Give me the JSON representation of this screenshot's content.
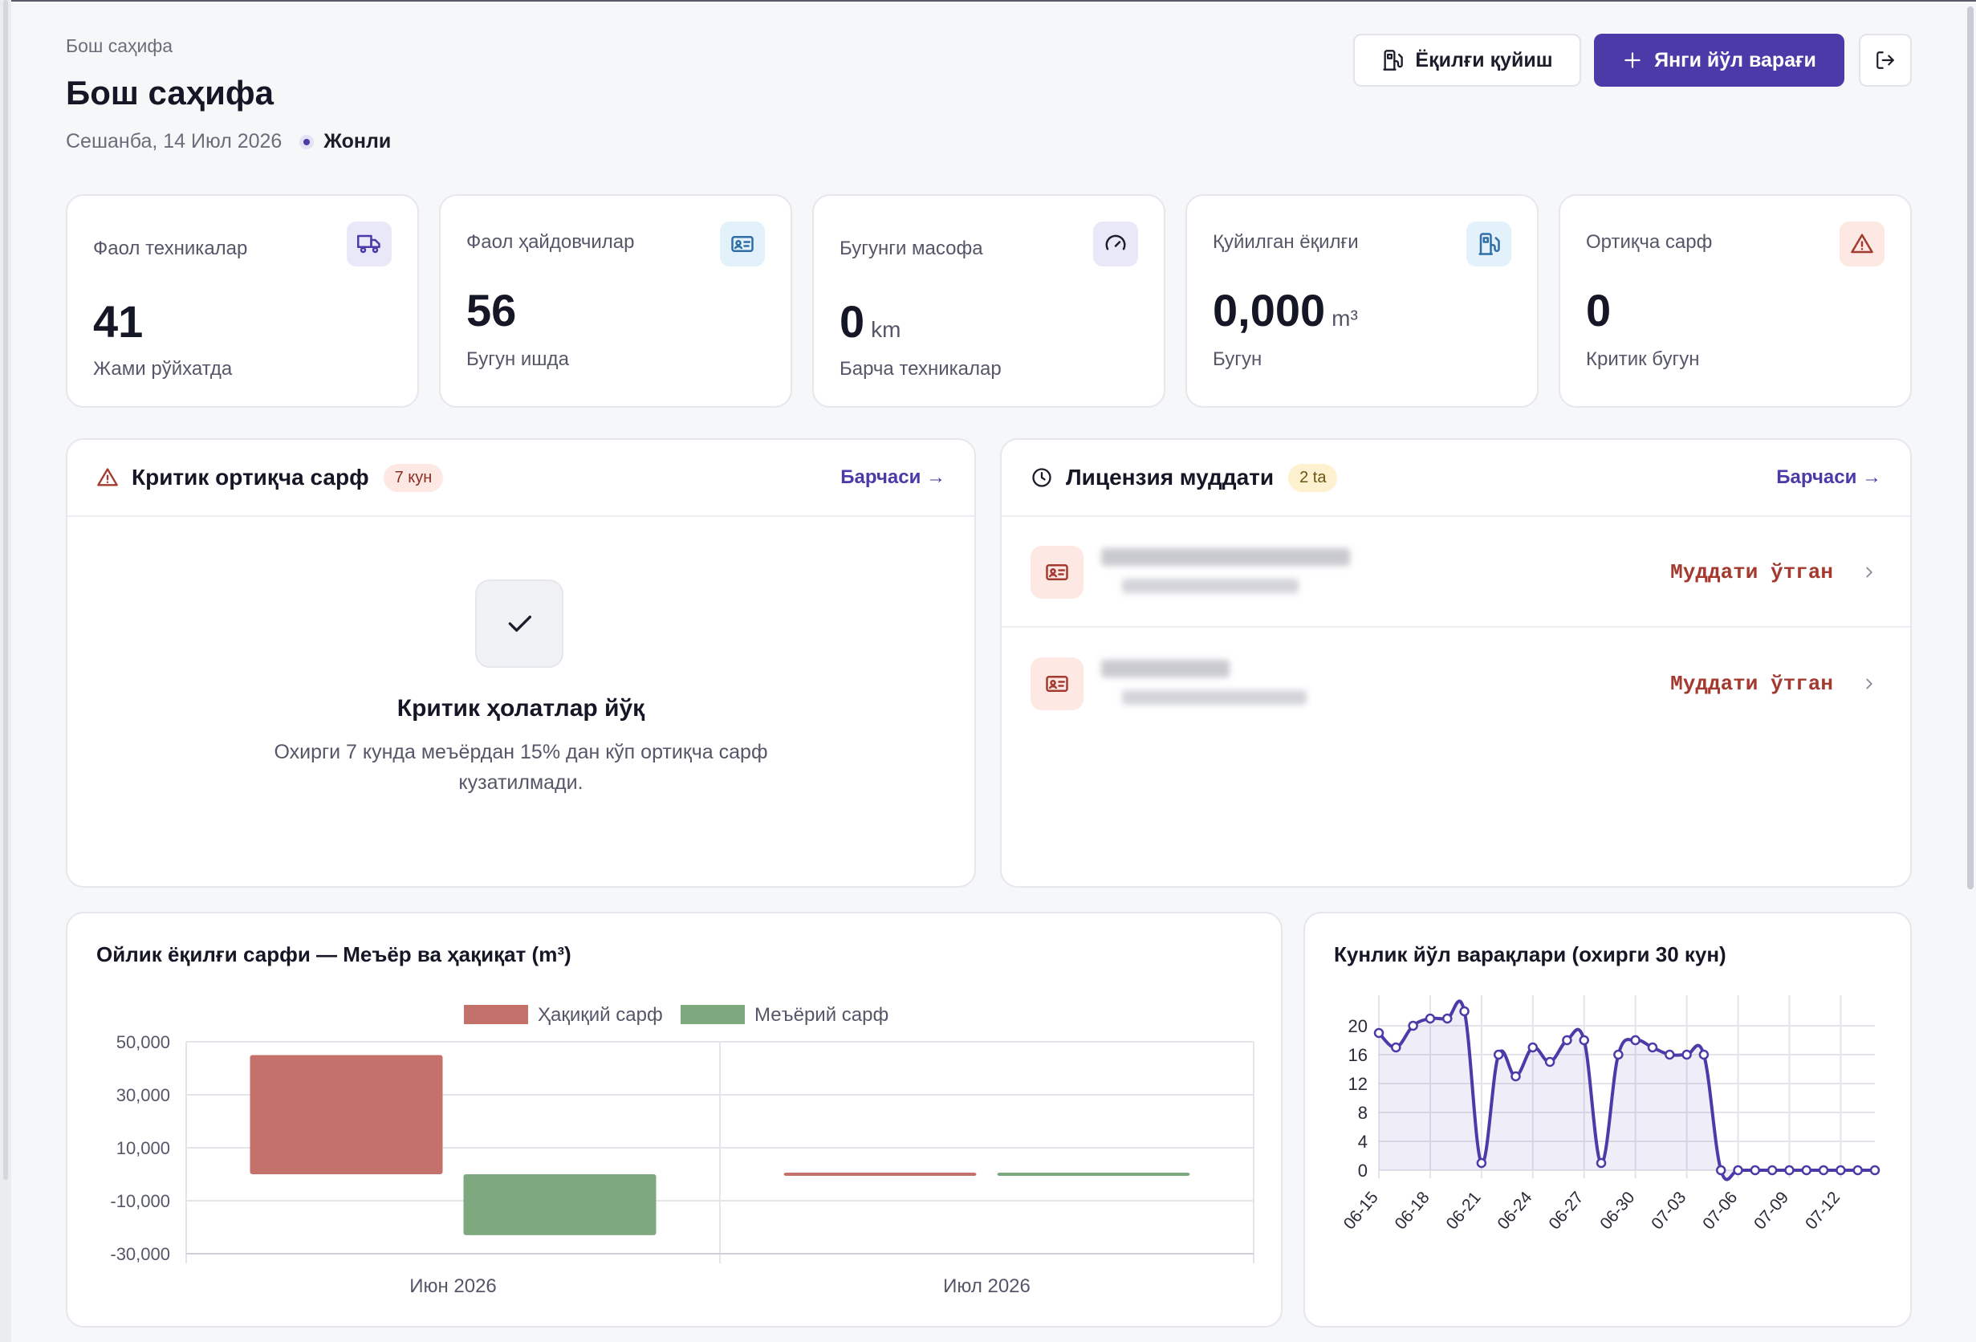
{
  "header": {
    "breadcrumb": "Бош саҳифа",
    "title": "Бош саҳифа",
    "date": "Сешанба, 14 Июл 2026",
    "status": "Жонли",
    "fuel_button": "Ёқилғи қуйиш",
    "new_button": "Янги йўл варағи"
  },
  "stats": [
    {
      "label": "Фаол техникалар",
      "value": "41",
      "unit": "",
      "sub": "Жами рўйхатда",
      "icon": "truck-icon"
    },
    {
      "label": "Фаол ҳайдовчилар",
      "value": "56",
      "unit": "",
      "sub": "Бугун ишда",
      "icon": "id-card-icon"
    },
    {
      "label": "Бугунги масофа",
      "value": "0",
      "unit": "km",
      "sub": "Барча техникалар",
      "icon": "speedometer-icon"
    },
    {
      "label": "Қуйилган ёқилғи",
      "value": "0,000",
      "unit": "m³",
      "sub": "Бугун",
      "icon": "fuel-pump-icon"
    },
    {
      "label": "Ортиқча сарф",
      "value": "0",
      "unit": "",
      "sub": "Критик бугун",
      "icon": "warning-icon"
    }
  ],
  "critical": {
    "title": "Критик ортиқча сарф",
    "badge": "7 кун",
    "link": "Барчаси →",
    "empty_title": "Критик ҳолатлар йўқ",
    "empty_desc": "Охирги 7 кунда меъёрдан 15% дан кўп ортиқча сарф кузатилмади."
  },
  "license": {
    "title": "Лицензия муддати",
    "badge": "2 ta",
    "link": "Барчаси →",
    "items": [
      {
        "status": "Муддати ўтган"
      },
      {
        "status": "Муддати ўтган"
      }
    ]
  },
  "colors": {
    "accent": "#4b3aa8",
    "actual": "#c4706b",
    "norm": "#7ea97e",
    "danger": "#a43a2f"
  },
  "chart_data": [
    {
      "type": "bar",
      "title": "Ойлик ёқилғи сарфи — Меъёр ва ҳақиқат (m³)",
      "categories": [
        "Июн 2026",
        "Июл 2026"
      ],
      "series": [
        {
          "name": "Ҳақиқий сарф",
          "values": [
            45000,
            0
          ]
        },
        {
          "name": "Меъёрий сарф",
          "values": [
            -23000,
            0
          ]
        }
      ],
      "ylim": [
        -30000,
        50000
      ],
      "yticks": [
        50000,
        30000,
        10000,
        -10000,
        -30000
      ],
      "ytick_labels": [
        "50,000",
        "30,000",
        "10,000",
        "-10,000",
        "-30,000"
      ],
      "legend": "top",
      "grid": true
    },
    {
      "type": "line",
      "title": "Кунлик йўл варақлари (охирги 30 кун)",
      "x": [
        "06-15",
        "06-16",
        "06-17",
        "06-18",
        "06-19",
        "06-20",
        "06-21",
        "06-22",
        "06-23",
        "06-24",
        "06-25",
        "06-26",
        "06-27",
        "06-28",
        "06-29",
        "06-30",
        "07-01",
        "07-02",
        "07-03",
        "07-04",
        "07-05",
        "07-06",
        "07-07",
        "07-08",
        "07-09",
        "07-10",
        "07-11",
        "07-12",
        "07-13",
        "07-14"
      ],
      "values": [
        19,
        17,
        20,
        21,
        21,
        22,
        1,
        16,
        13,
        17,
        15,
        18,
        18,
        1,
        16,
        18,
        17,
        16,
        16,
        16,
        0,
        0,
        0,
        0,
        0,
        0,
        0,
        0,
        0,
        0
      ],
      "xtick_labels": [
        "06-15",
        "06-18",
        "06-21",
        "06-24",
        "06-27",
        "06-30",
        "07-03",
        "07-06",
        "07-09",
        "07-12"
      ],
      "ylim": [
        0,
        22
      ],
      "yticks": [
        0,
        4,
        8,
        12,
        16,
        20
      ],
      "grid": true
    }
  ]
}
